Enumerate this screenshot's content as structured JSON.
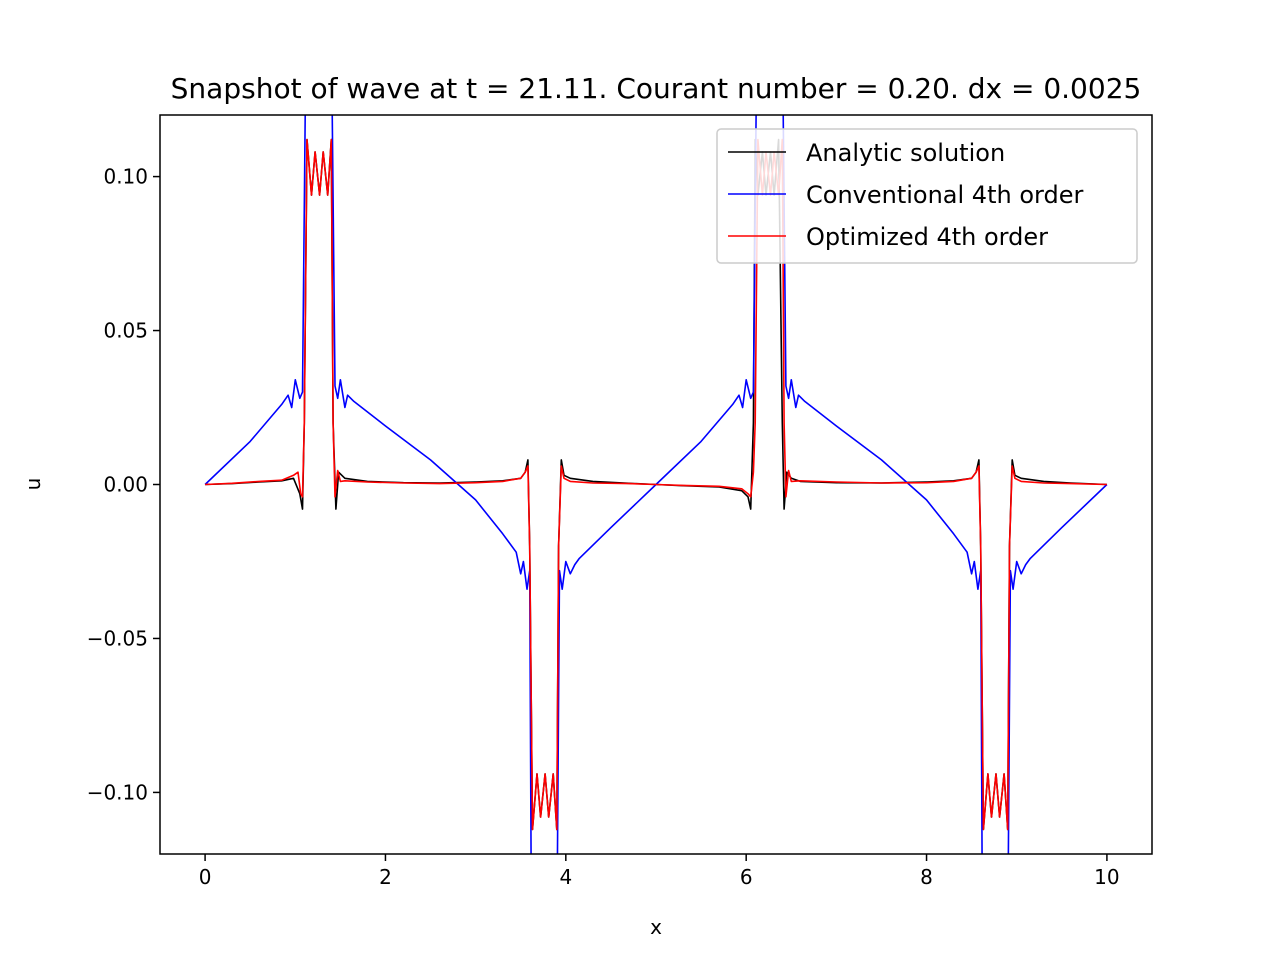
{
  "chart_data": {
    "type": "line",
    "title": "Snapshot of wave at t = 21.11. Courant number = 0.20. dx = 0.0025",
    "xlabel": "x",
    "ylabel": "u",
    "xlim": [
      -0.5,
      10.5
    ],
    "ylim": [
      -0.12,
      0.12
    ],
    "grid": false,
    "legend_position": "top-right",
    "x_ticks": [
      {
        "value": 0,
        "label": "0"
      },
      {
        "value": 2,
        "label": "2"
      },
      {
        "value": 4,
        "label": "4"
      },
      {
        "value": 6,
        "label": "6"
      },
      {
        "value": 8,
        "label": "8"
      },
      {
        "value": 10,
        "label": "10"
      }
    ],
    "y_ticks": [
      {
        "value": 0.1,
        "label": "0.10"
      },
      {
        "value": 0.05,
        "label": "0.05"
      },
      {
        "value": 0.0,
        "label": "0.00"
      },
      {
        "value": -0.05,
        "label": "−0.05"
      },
      {
        "value": -0.1,
        "label": "−0.10"
      }
    ],
    "series": [
      {
        "name": "Analytic solution",
        "color": "#000000",
        "x": [
          0,
          0.3,
          0.6,
          0.85,
          0.98,
          1.05,
          1.08,
          1.1,
          1.13,
          1.18,
          1.22,
          1.27,
          1.31,
          1.36,
          1.4,
          1.42,
          1.45,
          1.48,
          1.55,
          1.8,
          2.2,
          2.6,
          3.0,
          3.3,
          3.5,
          3.55,
          3.58,
          3.6,
          3.63,
          3.68,
          3.72,
          3.77,
          3.81,
          3.86,
          3.9,
          3.92,
          3.95,
          3.98,
          4.05,
          4.3,
          4.7,
          5.0,
          5.3,
          5.7,
          5.95,
          6.02,
          6.05,
          6.08,
          6.1,
          6.13,
          6.18,
          6.22,
          6.27,
          6.31,
          6.36,
          6.4,
          6.42,
          6.45,
          6.5,
          6.6,
          7.0,
          7.5,
          8.0,
          8.3,
          8.5,
          8.55,
          8.58,
          8.6,
          8.63,
          8.68,
          8.72,
          8.77,
          8.81,
          8.86,
          8.9,
          8.92,
          8.95,
          8.98,
          9.05,
          9.3,
          9.6,
          10.0
        ],
        "y": [
          0,
          0.0003,
          0.0008,
          0.0012,
          0.002,
          -0.003,
          -0.008,
          0.02,
          0.112,
          0.094,
          0.108,
          0.094,
          0.108,
          0.094,
          0.112,
          0.02,
          -0.008,
          0.004,
          0.002,
          0.001,
          0.0006,
          0.0005,
          0.0008,
          0.0012,
          0.002,
          0.004,
          0.008,
          -0.02,
          -0.112,
          -0.094,
          -0.108,
          -0.094,
          -0.108,
          -0.094,
          -0.112,
          -0.02,
          0.008,
          0.003,
          0.002,
          0.001,
          0.0004,
          0,
          -0.0004,
          -0.0008,
          -0.002,
          -0.004,
          -0.008,
          0.02,
          0.112,
          0.094,
          0.108,
          0.094,
          0.108,
          0.094,
          0.112,
          0.02,
          -0.008,
          0.004,
          0.002,
          0.001,
          0.0006,
          0.0005,
          0.0008,
          0.0012,
          0.002,
          0.004,
          0.008,
          -0.02,
          -0.112,
          -0.094,
          -0.108,
          -0.094,
          -0.108,
          -0.094,
          -0.112,
          -0.02,
          0.008,
          0.003,
          0.002,
          0.001,
          0.0005,
          0
        ]
      },
      {
        "name": "Conventional 4th order",
        "color": "#0000ff",
        "x": [
          0,
          0.5,
          0.85,
          0.92,
          0.96,
          1.0,
          1.05,
          1.08,
          1.12,
          1.4,
          1.44,
          1.47,
          1.5,
          1.55,
          1.58,
          1.65,
          2.0,
          2.5,
          3.0,
          3.3,
          3.45,
          3.5,
          3.53,
          3.57,
          3.6,
          3.62,
          3.9,
          3.93,
          3.96,
          4.0,
          4.05,
          4.1,
          4.15,
          4.5,
          5.0,
          5.5,
          5.85,
          5.92,
          5.96,
          6.0,
          6.05,
          6.08,
          6.12,
          6.4,
          6.44,
          6.47,
          6.5,
          6.55,
          6.58,
          6.65,
          7.0,
          7.5,
          8.0,
          8.3,
          8.45,
          8.5,
          8.53,
          8.57,
          8.6,
          8.62,
          8.9,
          8.93,
          8.96,
          9.0,
          9.05,
          9.1,
          9.15,
          9.5,
          10.0
        ],
        "y": [
          0,
          0.014,
          0.026,
          0.029,
          0.025,
          0.034,
          0.028,
          0.03,
          0.15,
          0.15,
          0.032,
          0.028,
          0.034,
          0.025,
          0.029,
          0.027,
          0.019,
          0.008,
          -0.005,
          -0.016,
          -0.022,
          -0.029,
          -0.025,
          -0.034,
          -0.028,
          -0.15,
          -0.15,
          -0.028,
          -0.034,
          -0.025,
          -0.029,
          -0.026,
          -0.024,
          -0.014,
          0,
          0.014,
          0.026,
          0.029,
          0.025,
          0.034,
          0.028,
          0.03,
          0.15,
          0.15,
          0.032,
          0.028,
          0.034,
          0.025,
          0.029,
          0.027,
          0.019,
          0.008,
          -0.005,
          -0.016,
          -0.022,
          -0.029,
          -0.025,
          -0.034,
          -0.028,
          -0.15,
          -0.15,
          -0.028,
          -0.034,
          -0.025,
          -0.029,
          -0.026,
          -0.024,
          -0.014,
          0
        ]
      },
      {
        "name": "Optimized 4th order",
        "color": "#ff0000",
        "x": [
          0,
          0.3,
          0.6,
          0.85,
          0.98,
          1.03,
          1.06,
          1.08,
          1.1,
          1.13,
          1.18,
          1.22,
          1.27,
          1.31,
          1.36,
          1.4,
          1.42,
          1.44,
          1.47,
          1.5,
          1.55,
          1.8,
          2.2,
          2.6,
          3.0,
          3.3,
          3.5,
          3.55,
          3.58,
          3.6,
          3.63,
          3.68,
          3.72,
          3.77,
          3.81,
          3.86,
          3.9,
          3.92,
          3.95,
          3.98,
          4.05,
          4.3,
          4.7,
          5.0,
          5.3,
          5.7,
          5.95,
          6.02,
          6.05,
          6.08,
          6.1,
          6.13,
          6.18,
          6.22,
          6.27,
          6.31,
          6.36,
          6.4,
          6.42,
          6.44,
          6.47,
          6.5,
          6.6,
          7.0,
          7.5,
          8.0,
          8.3,
          8.5,
          8.55,
          8.58,
          8.6,
          8.63,
          8.68,
          8.72,
          8.77,
          8.81,
          8.86,
          8.9,
          8.92,
          8.95,
          8.98,
          9.05,
          9.3,
          9.6,
          10.0
        ],
        "y": [
          0,
          0.0004,
          0.001,
          0.0014,
          0.003,
          0.004,
          -0.003,
          -0.004,
          0.02,
          0.112,
          0.094,
          0.108,
          0.094,
          0.108,
          0.094,
          0.112,
          0.02,
          -0.004,
          0.0045,
          0.001,
          0.0012,
          0.0008,
          0.0005,
          0.0003,
          0.0006,
          0.001,
          0.002,
          0.004,
          0.006,
          -0.02,
          -0.112,
          -0.094,
          -0.108,
          -0.094,
          -0.108,
          -0.094,
          -0.112,
          -0.02,
          0.006,
          0.002,
          0.001,
          0.0005,
          0.0003,
          0,
          -0.0003,
          -0.0006,
          -0.0014,
          -0.003,
          -0.004,
          0.004,
          0.02,
          0.112,
          0.094,
          0.108,
          0.094,
          0.108,
          0.094,
          0.112,
          0.02,
          -0.004,
          0.0045,
          0.001,
          0.0012,
          0.0008,
          0.0005,
          0.0006,
          0.001,
          0.002,
          0.004,
          0.006,
          -0.02,
          -0.112,
          -0.094,
          -0.108,
          -0.094,
          -0.108,
          -0.094,
          -0.112,
          -0.02,
          0.006,
          0.002,
          0.001,
          0.0005,
          0.0003,
          0
        ]
      }
    ]
  }
}
